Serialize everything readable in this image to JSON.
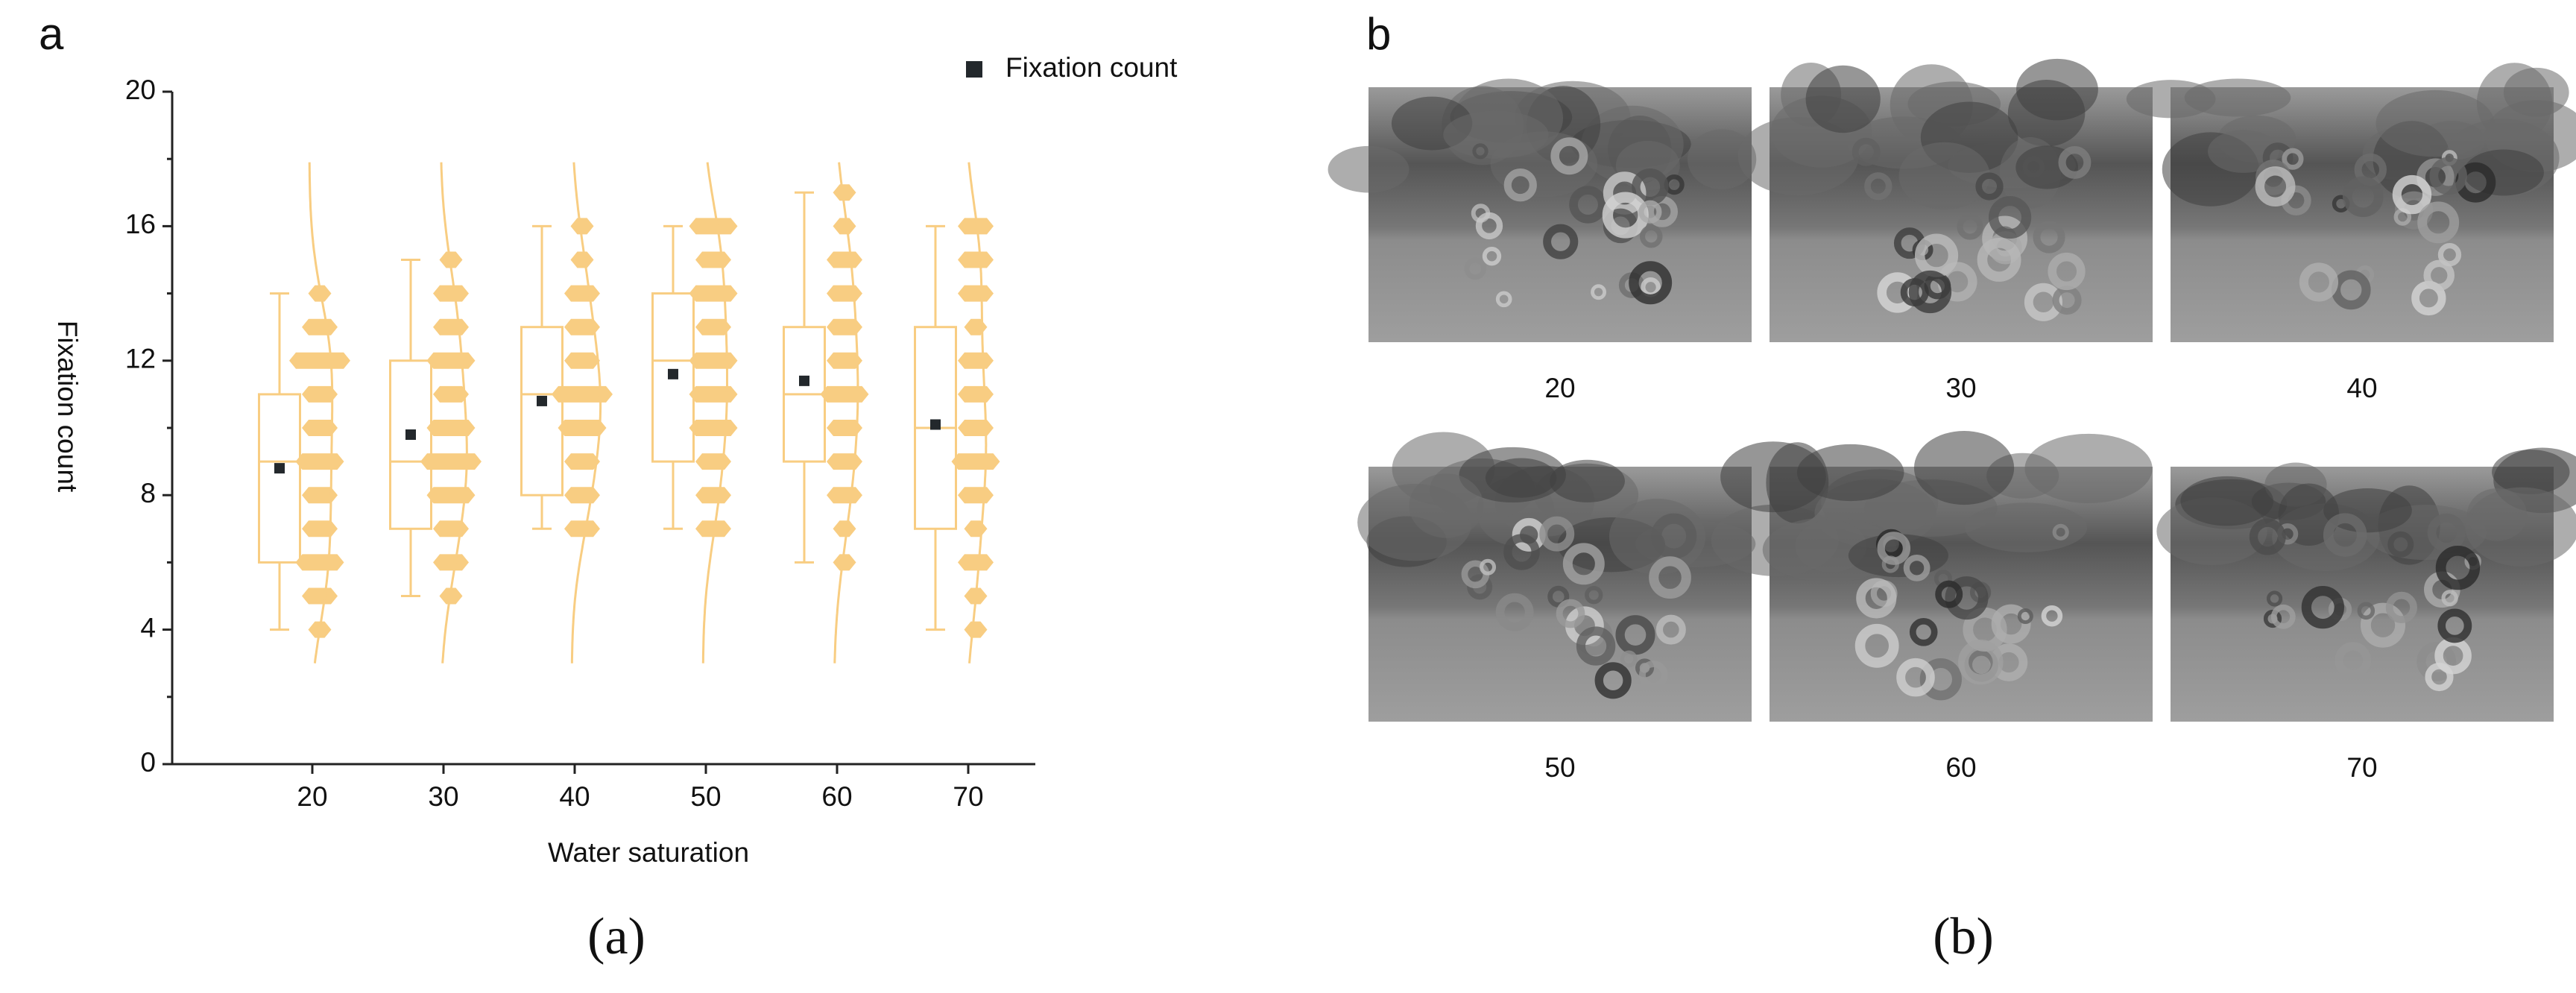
{
  "panel_a_label": "a",
  "panel_a_caption": "(a)",
  "chart_data": {
    "type": "box",
    "xlabel": "Water saturation",
    "ylabel": "Fixation count",
    "categories": [
      "20",
      "30",
      "40",
      "50",
      "60",
      "70"
    ],
    "ylim": [
      0,
      20
    ],
    "yticks": [
      0,
      4,
      8,
      12,
      16,
      20
    ],
    "color": "#f8cd82",
    "mean_series": {
      "name": "Fixation count",
      "color": "#23282c"
    },
    "boxes": [
      {
        "min": 4,
        "q1": 6,
        "median": 9,
        "q3": 11,
        "max": 14,
        "mean": 8.8
      },
      {
        "min": 5,
        "q1": 7,
        "median": 9,
        "q3": 12,
        "max": 15,
        "mean": 9.8
      },
      {
        "min": 7,
        "q1": 8,
        "median": 11,
        "q3": 13,
        "max": 16,
        "mean": 10.8
      },
      {
        "min": 7,
        "q1": 9,
        "median": 12,
        "q3": 14,
        "max": 16,
        "mean": 11.6
      },
      {
        "min": 6,
        "q1": 9,
        "median": 11,
        "q3": 13,
        "max": 17,
        "mean": 11.4
      },
      {
        "min": 4,
        "q1": 7,
        "median": 10,
        "q3": 13,
        "max": 16,
        "mean": 10.1
      }
    ],
    "points": [
      [
        {
          "value": 4,
          "count": 1
        },
        {
          "value": 5,
          "count": 2
        },
        {
          "value": 6,
          "count": 3
        },
        {
          "value": 7,
          "count": 2
        },
        {
          "value": 8,
          "count": 2
        },
        {
          "value": 9,
          "count": 3
        },
        {
          "value": 10,
          "count": 2
        },
        {
          "value": 11,
          "count": 2
        },
        {
          "value": 12,
          "count": 4
        },
        {
          "value": 13,
          "count": 2
        },
        {
          "value": 14,
          "count": 1
        }
      ],
      [
        {
          "value": 5,
          "count": 1
        },
        {
          "value": 6,
          "count": 2
        },
        {
          "value": 7,
          "count": 2
        },
        {
          "value": 8,
          "count": 3
        },
        {
          "value": 9,
          "count": 4
        },
        {
          "value": 10,
          "count": 3
        },
        {
          "value": 11,
          "count": 2
        },
        {
          "value": 12,
          "count": 3
        },
        {
          "value": 13,
          "count": 2
        },
        {
          "value": 14,
          "count": 2
        },
        {
          "value": 15,
          "count": 1
        }
      ],
      [
        {
          "value": 7,
          "count": 2
        },
        {
          "value": 8,
          "count": 2
        },
        {
          "value": 9,
          "count": 2
        },
        {
          "value": 10,
          "count": 3
        },
        {
          "value": 11,
          "count": 4
        },
        {
          "value": 12,
          "count": 2
        },
        {
          "value": 13,
          "count": 2
        },
        {
          "value": 14,
          "count": 2
        },
        {
          "value": 15,
          "count": 1
        },
        {
          "value": 16,
          "count": 1
        }
      ],
      [
        {
          "value": 7,
          "count": 2
        },
        {
          "value": 8,
          "count": 2
        },
        {
          "value": 9,
          "count": 2
        },
        {
          "value": 10,
          "count": 3
        },
        {
          "value": 11,
          "count": 3
        },
        {
          "value": 12,
          "count": 3
        },
        {
          "value": 13,
          "count": 2
        },
        {
          "value": 14,
          "count": 3
        },
        {
          "value": 15,
          "count": 2
        },
        {
          "value": 16,
          "count": 3
        }
      ],
      [
        {
          "value": 6,
          "count": 1
        },
        {
          "value": 7,
          "count": 1
        },
        {
          "value": 8,
          "count": 2
        },
        {
          "value": 9,
          "count": 2
        },
        {
          "value": 10,
          "count": 2
        },
        {
          "value": 11,
          "count": 3
        },
        {
          "value": 12,
          "count": 2
        },
        {
          "value": 13,
          "count": 2
        },
        {
          "value": 14,
          "count": 2
        },
        {
          "value": 15,
          "count": 2
        },
        {
          "value": 16,
          "count": 1
        },
        {
          "value": 17,
          "count": 1
        }
      ],
      [
        {
          "value": 4,
          "count": 1
        },
        {
          "value": 5,
          "count": 1
        },
        {
          "value": 6,
          "count": 2
        },
        {
          "value": 7,
          "count": 1
        },
        {
          "value": 8,
          "count": 2
        },
        {
          "value": 9,
          "count": 3
        },
        {
          "value": 10,
          "count": 2
        },
        {
          "value": 11,
          "count": 2
        },
        {
          "value": 12,
          "count": 2
        },
        {
          "value": 13,
          "count": 1
        },
        {
          "value": 14,
          "count": 2
        },
        {
          "value": 15,
          "count": 2
        },
        {
          "value": 16,
          "count": 2
        }
      ]
    ]
  },
  "panel_b": {
    "label": "b",
    "caption": "(b)",
    "images": [
      {
        "label": "20"
      },
      {
        "label": "30"
      },
      {
        "label": "40"
      },
      {
        "label": "50"
      },
      {
        "label": "60"
      },
      {
        "label": "70"
      }
    ]
  }
}
